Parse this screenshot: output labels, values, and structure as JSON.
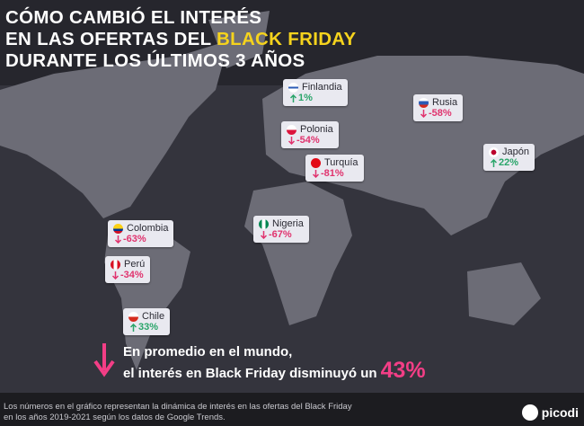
{
  "title": {
    "line1": "CÓMO CAMBIÓ EL INTERÉS",
    "line2": "EN LAS OFERTAS DEL",
    "highlight": "BLACK FRIDAY",
    "line3": "DURANTE LOS ÚLTIMOS 3 AÑOS"
  },
  "countries": [
    {
      "name": "Finlandia",
      "change": "1%",
      "direction": "up"
    },
    {
      "name": "Rusia",
      "change": "-58%",
      "direction": "down"
    },
    {
      "name": "Polonia",
      "change": "-54%",
      "direction": "down"
    },
    {
      "name": "Turquía",
      "change": "-81%",
      "direction": "down"
    },
    {
      "name": "Japón",
      "change": "22%",
      "direction": "up"
    },
    {
      "name": "Colombia",
      "change": "-63%",
      "direction": "down"
    },
    {
      "name": "Nigeria",
      "change": "-67%",
      "direction": "down"
    },
    {
      "name": "Perú",
      "change": "-34%",
      "direction": "down"
    },
    {
      "name": "Chile",
      "change": "33%",
      "direction": "up"
    }
  ],
  "summary": {
    "line1": "En promedio en el mundo,",
    "line2": "el interés en Black Friday disminuyó un",
    "value": "43%"
  },
  "footer": {
    "line1": "Los números en el gráfico representan la dinámica de interés en las ofertas del Black Friday",
    "line2": "en los años 2019-2021 según los datos de Google Trends."
  },
  "logo": "picodi"
}
